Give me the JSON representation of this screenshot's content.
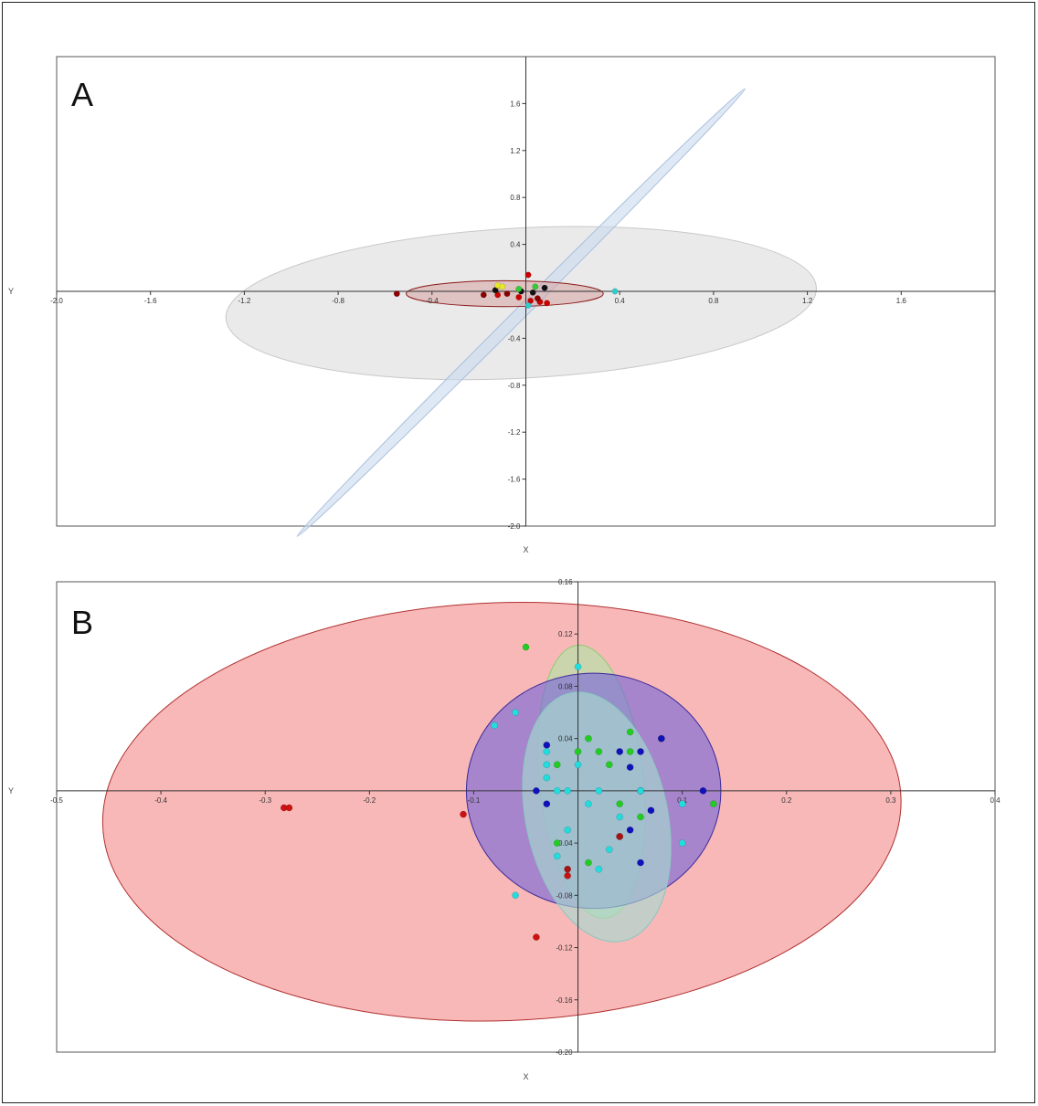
{
  "chart_data": [
    {
      "type": "scatter",
      "panel_label": "A",
      "xlabel": "X",
      "ylabel": "Y",
      "xlim": [
        -2.0,
        2.0
      ],
      "ylim": [
        -2.0,
        2.0
      ],
      "x_ticks": [
        "-2.0",
        "-1.6",
        "-1.2",
        "-0.8",
        "-0.4",
        "0.4",
        "0.8",
        "1.2",
        "1.6"
      ],
      "x_tick_values": [
        -2.0,
        -1.6,
        -1.2,
        -0.8,
        -0.4,
        0.4,
        0.8,
        1.2,
        1.6
      ],
      "y_ticks": [
        "1.6",
        "1.2",
        "0.8",
        "0.4",
        "-0.4",
        "-0.8",
        "-1.2",
        "-1.6",
        "-2.0"
      ],
      "y_tick_values": [
        1.6,
        1.2,
        0.8,
        0.4,
        -0.4,
        -0.8,
        -1.2,
        -1.6,
        -2.0
      ],
      "ellipses": [
        {
          "cx": -0.02,
          "cy": -0.1,
          "rx": 1.26,
          "ry": 0.64,
          "angle_deg": -3,
          "fill": "#d9d9d9",
          "stroke": "#c8c8c8",
          "opacity": 0.55
        },
        {
          "cx": -0.02,
          "cy": -0.18,
          "rx": 1.35,
          "ry": 0.05,
          "angle_deg": -45,
          "fill": "#c9d9ee",
          "stroke": "#a9bfdc",
          "opacity": 0.6
        },
        {
          "cx": -0.09,
          "cy": -0.02,
          "rx": 0.42,
          "ry": 0.11,
          "angle_deg": 0,
          "fill": "#d7a6a6",
          "stroke": "#8b1a1a",
          "opacity": 0.6
        }
      ],
      "series": [
        {
          "color": "#cc0000",
          "points": [
            [
              0.01,
              0.14
            ],
            [
              -0.03,
              -0.05
            ],
            [
              0.02,
              -0.08
            ],
            [
              0.06,
              -0.09
            ],
            [
              -0.12,
              -0.03
            ],
            [
              0.09,
              -0.1
            ]
          ]
        },
        {
          "color": "#8b0000",
          "points": [
            [
              -0.55,
              -0.02
            ],
            [
              -0.18,
              -0.03
            ],
            [
              0.05,
              -0.06
            ],
            [
              -0.08,
              -0.02
            ]
          ]
        },
        {
          "color": "#111111",
          "points": [
            [
              -0.13,
              0.01
            ],
            [
              -0.02,
              0.0
            ],
            [
              0.08,
              0.03
            ],
            [
              0.03,
              -0.01
            ]
          ]
        },
        {
          "color": "#e8e82a",
          "points": [
            [
              -0.12,
              0.05
            ],
            [
              -0.1,
              0.04
            ]
          ]
        },
        {
          "color": "#33cc33",
          "points": [
            [
              0.04,
              0.04
            ],
            [
              -0.03,
              0.02
            ]
          ]
        },
        {
          "color": "#33cccc",
          "points": [
            [
              0.01,
              -0.12
            ],
            [
              0.38,
              0.0
            ]
          ]
        }
      ]
    },
    {
      "type": "scatter",
      "panel_label": "B",
      "xlabel": "X",
      "ylabel": "Y",
      "xlim": [
        -0.5,
        0.4
      ],
      "ylim": [
        -0.2,
        0.16
      ],
      "x_ticks": [
        "-0.5",
        "-0.4",
        "-0.3",
        "-0.2",
        "-0.1",
        "0.1",
        "0.2",
        "0.3",
        "0.4"
      ],
      "x_tick_values": [
        -0.5,
        -0.4,
        -0.3,
        -0.2,
        -0.1,
        0.1,
        0.2,
        0.3,
        0.4
      ],
      "y_ticks": [
        "0.16",
        "0.12",
        "0.08",
        "0.04",
        "-0.04",
        "-0.08",
        "-0.12",
        "-0.16",
        "-0.20"
      ],
      "y_tick_values": [
        0.16,
        0.12,
        0.08,
        0.04,
        -0.04,
        -0.08,
        -0.12,
        -0.16,
        -0.2
      ],
      "ellipses": [
        {
          "cx": -0.073,
          "cy": -0.016,
          "rx": 0.383,
          "ry": 0.16,
          "angle_deg": -2,
          "fill": "#f7a0a0",
          "stroke": "#b03030",
          "opacity": 0.75
        },
        {
          "cx": 0.013,
          "cy": 0.007,
          "rx": 0.05,
          "ry": 0.105,
          "angle_deg": -6,
          "fill": "#b7e0a8",
          "stroke": "#8fcc70",
          "opacity": 0.7
        },
        {
          "cx": 0.015,
          "cy": 0.0,
          "rx": 0.122,
          "ry": 0.09,
          "angle_deg": 0,
          "fill": "#7a6ad8",
          "stroke": "#3a2a9a",
          "opacity": 0.65
        },
        {
          "cx": 0.018,
          "cy": -0.02,
          "rx": 0.068,
          "ry": 0.097,
          "angle_deg": -12,
          "fill": "#a8d8d0",
          "stroke": "#88c8c0",
          "opacity": 0.65
        }
      ],
      "series": [
        {
          "color": "#cc1111",
          "points": [
            [
              -0.282,
              -0.013
            ],
            [
              -0.277,
              -0.013
            ],
            [
              -0.11,
              -0.018
            ],
            [
              0.04,
              -0.035
            ],
            [
              -0.01,
              -0.065
            ],
            [
              -0.04,
              -0.112
            ]
          ]
        },
        {
          "color": "#22cc22",
          "points": [
            [
              -0.05,
              0.11
            ],
            [
              0.02,
              0.03
            ],
            [
              0.05,
              0.03
            ],
            [
              0.06,
              -0.02
            ],
            [
              0.04,
              -0.01
            ],
            [
              0.08,
              0.04
            ],
            [
              0.13,
              -0.01
            ],
            [
              -0.02,
              -0.04
            ],
            [
              0.01,
              -0.055
            ],
            [
              0.05,
              0.045
            ],
            [
              0.0,
              0.03
            ],
            [
              -0.02,
              0.02
            ],
            [
              0.03,
              0.02
            ],
            [
              0.01,
              0.04
            ]
          ]
        },
        {
          "color": "#1111bb",
          "points": [
            [
              -0.03,
              0.035
            ],
            [
              -0.04,
              0.0
            ],
            [
              -0.03,
              -0.01
            ],
            [
              0.04,
              0.03
            ],
            [
              0.06,
              0.03
            ],
            [
              0.05,
              -0.03
            ],
            [
              0.12,
              0.0
            ],
            [
              0.06,
              -0.055
            ],
            [
              0.08,
              0.04
            ],
            [
              0.07,
              -0.015
            ],
            [
              0.05,
              0.018
            ],
            [
              0.06,
              0.0
            ]
          ]
        },
        {
          "color": "#22dddd",
          "points": [
            [
              -0.08,
              0.05
            ],
            [
              -0.06,
              0.06
            ],
            [
              -0.03,
              0.02
            ],
            [
              -0.03,
              0.01
            ],
            [
              -0.02,
              0.0
            ],
            [
              0.0,
              0.02
            ],
            [
              0.01,
              -0.01
            ],
            [
              -0.01,
              -0.03
            ],
            [
              -0.02,
              -0.05
            ],
            [
              0.02,
              -0.06
            ],
            [
              0.03,
              -0.045
            ],
            [
              0.1,
              -0.01
            ],
            [
              0.1,
              -0.04
            ],
            [
              0.0,
              0.095
            ],
            [
              -0.01,
              0.0
            ],
            [
              0.02,
              0.0
            ],
            [
              -0.03,
              0.03
            ],
            [
              0.04,
              -0.02
            ],
            [
              -0.06,
              -0.08
            ],
            [
              0.06,
              0.0
            ]
          ]
        },
        {
          "color": "#aa1111",
          "points": [
            [
              -0.01,
              -0.06
            ],
            [
              0.04,
              -0.035
            ]
          ]
        }
      ]
    }
  ]
}
